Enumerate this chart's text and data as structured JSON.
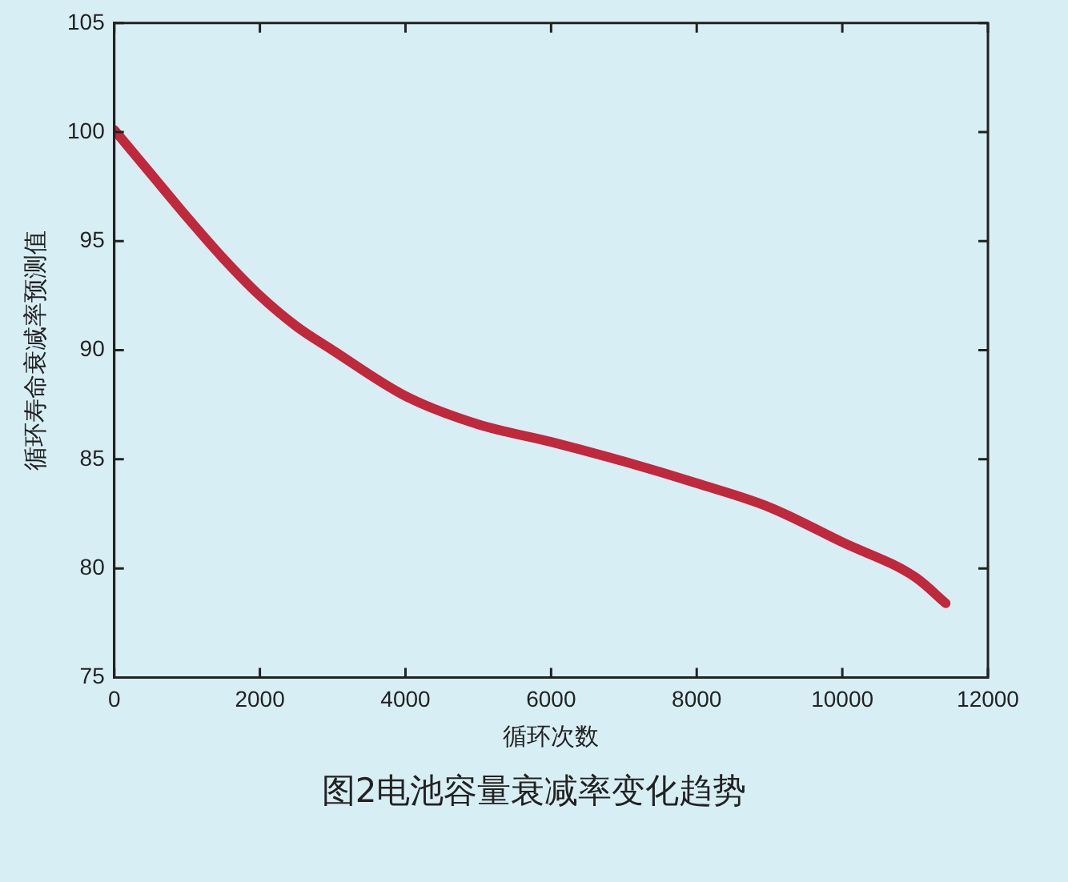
{
  "chart_data": {
    "type": "line",
    "title": "图2电池容量衰减率变化趋势",
    "xlabel": "循环次数",
    "ylabel": "循环寿命衰减率预测值",
    "x": [
      0,
      500,
      1000,
      1500,
      2000,
      2500,
      3000,
      4000,
      5000,
      6000,
      7000,
      8000,
      9000,
      10000,
      11000,
      11420
    ],
    "series": [
      {
        "color": "#c0283c",
        "values": [
          100.1,
          98.1,
          96.1,
          94.2,
          92.5,
          91.1,
          90.0,
          87.9,
          86.6,
          85.8,
          84.9,
          83.9,
          82.8,
          81.2,
          79.6,
          78.4
        ]
      }
    ],
    "xlim": [
      0,
      12000
    ],
    "xticks": [
      0,
      2000,
      4000,
      6000,
      8000,
      10000,
      12000
    ],
    "ylim": [
      75,
      105
    ],
    "yticks": [
      75,
      80,
      85,
      90,
      95,
      100,
      105
    ],
    "grid": false,
    "legend": false,
    "marker": "none",
    "line_style": "solid"
  }
}
